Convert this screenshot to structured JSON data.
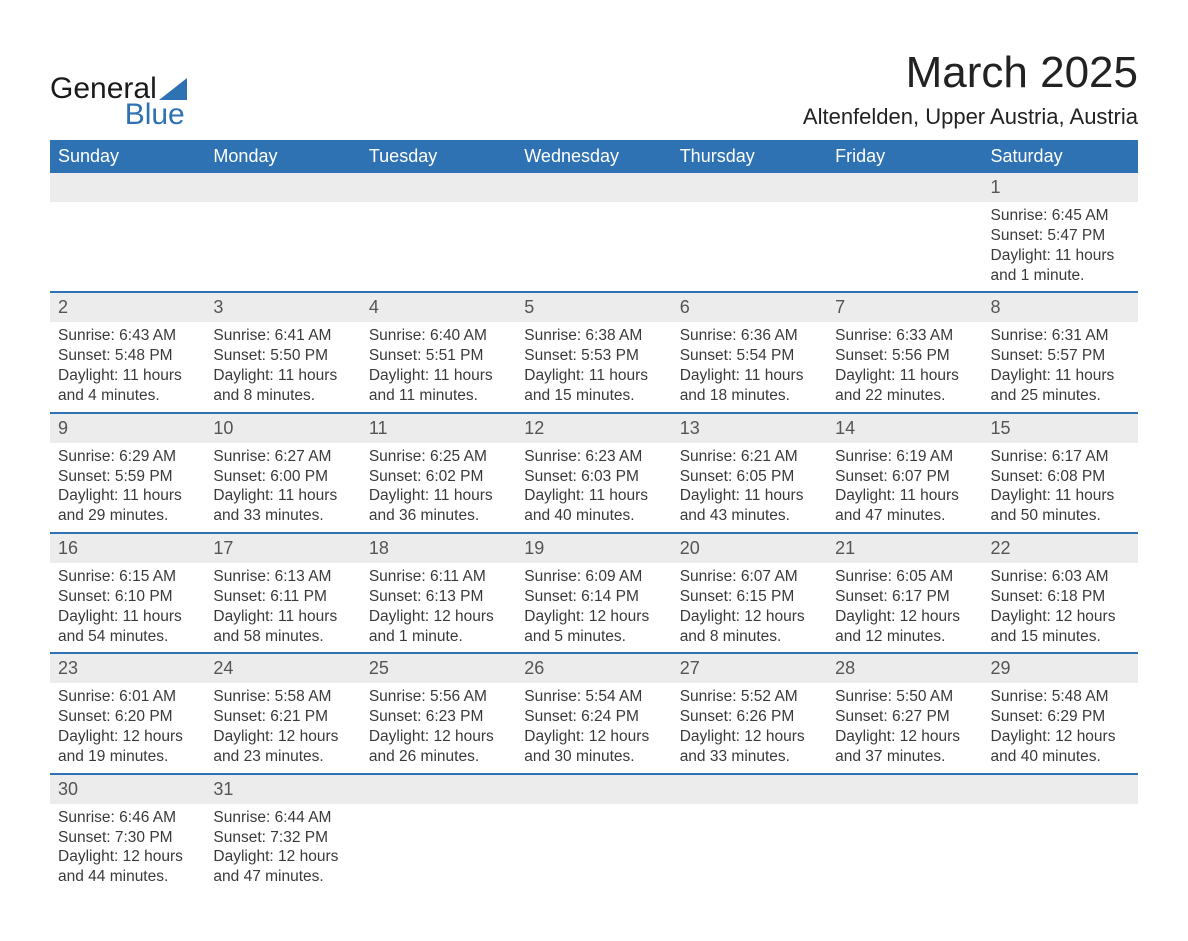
{
  "brand": {
    "line1": "General",
    "line2": "Blue",
    "accent": "#2e72b4"
  },
  "title": "March 2025",
  "location": "Altenfelden, Upper Austria, Austria",
  "day_names": [
    "Sunday",
    "Monday",
    "Tuesday",
    "Wednesday",
    "Thursday",
    "Friday",
    "Saturday"
  ],
  "colors": {
    "header_bg": "#2e72b4",
    "header_text": "#ffffff",
    "daynum_bg": "#ececec",
    "text": "#3a3a3a",
    "rule": "#2e72b4"
  },
  "weeks": [
    [
      null,
      null,
      null,
      null,
      null,
      null,
      {
        "n": "1",
        "sunrise": "Sunrise: 6:45 AM",
        "sunset": "Sunset: 5:47 PM",
        "day1": "Daylight: 11 hours",
        "day2": "and 1 minute."
      }
    ],
    [
      {
        "n": "2",
        "sunrise": "Sunrise: 6:43 AM",
        "sunset": "Sunset: 5:48 PM",
        "day1": "Daylight: 11 hours",
        "day2": "and 4 minutes."
      },
      {
        "n": "3",
        "sunrise": "Sunrise: 6:41 AM",
        "sunset": "Sunset: 5:50 PM",
        "day1": "Daylight: 11 hours",
        "day2": "and 8 minutes."
      },
      {
        "n": "4",
        "sunrise": "Sunrise: 6:40 AM",
        "sunset": "Sunset: 5:51 PM",
        "day1": "Daylight: 11 hours",
        "day2": "and 11 minutes."
      },
      {
        "n": "5",
        "sunrise": "Sunrise: 6:38 AM",
        "sunset": "Sunset: 5:53 PM",
        "day1": "Daylight: 11 hours",
        "day2": "and 15 minutes."
      },
      {
        "n": "6",
        "sunrise": "Sunrise: 6:36 AM",
        "sunset": "Sunset: 5:54 PM",
        "day1": "Daylight: 11 hours",
        "day2": "and 18 minutes."
      },
      {
        "n": "7",
        "sunrise": "Sunrise: 6:33 AM",
        "sunset": "Sunset: 5:56 PM",
        "day1": "Daylight: 11 hours",
        "day2": "and 22 minutes."
      },
      {
        "n": "8",
        "sunrise": "Sunrise: 6:31 AM",
        "sunset": "Sunset: 5:57 PM",
        "day1": "Daylight: 11 hours",
        "day2": "and 25 minutes."
      }
    ],
    [
      {
        "n": "9",
        "sunrise": "Sunrise: 6:29 AM",
        "sunset": "Sunset: 5:59 PM",
        "day1": "Daylight: 11 hours",
        "day2": "and 29 minutes."
      },
      {
        "n": "10",
        "sunrise": "Sunrise: 6:27 AM",
        "sunset": "Sunset: 6:00 PM",
        "day1": "Daylight: 11 hours",
        "day2": "and 33 minutes."
      },
      {
        "n": "11",
        "sunrise": "Sunrise: 6:25 AM",
        "sunset": "Sunset: 6:02 PM",
        "day1": "Daylight: 11 hours",
        "day2": "and 36 minutes."
      },
      {
        "n": "12",
        "sunrise": "Sunrise: 6:23 AM",
        "sunset": "Sunset: 6:03 PM",
        "day1": "Daylight: 11 hours",
        "day2": "and 40 minutes."
      },
      {
        "n": "13",
        "sunrise": "Sunrise: 6:21 AM",
        "sunset": "Sunset: 6:05 PM",
        "day1": "Daylight: 11 hours",
        "day2": "and 43 minutes."
      },
      {
        "n": "14",
        "sunrise": "Sunrise: 6:19 AM",
        "sunset": "Sunset: 6:07 PM",
        "day1": "Daylight: 11 hours",
        "day2": "and 47 minutes."
      },
      {
        "n": "15",
        "sunrise": "Sunrise: 6:17 AM",
        "sunset": "Sunset: 6:08 PM",
        "day1": "Daylight: 11 hours",
        "day2": "and 50 minutes."
      }
    ],
    [
      {
        "n": "16",
        "sunrise": "Sunrise: 6:15 AM",
        "sunset": "Sunset: 6:10 PM",
        "day1": "Daylight: 11 hours",
        "day2": "and 54 minutes."
      },
      {
        "n": "17",
        "sunrise": "Sunrise: 6:13 AM",
        "sunset": "Sunset: 6:11 PM",
        "day1": "Daylight: 11 hours",
        "day2": "and 58 minutes."
      },
      {
        "n": "18",
        "sunrise": "Sunrise: 6:11 AM",
        "sunset": "Sunset: 6:13 PM",
        "day1": "Daylight: 12 hours",
        "day2": "and 1 minute."
      },
      {
        "n": "19",
        "sunrise": "Sunrise: 6:09 AM",
        "sunset": "Sunset: 6:14 PM",
        "day1": "Daylight: 12 hours",
        "day2": "and 5 minutes."
      },
      {
        "n": "20",
        "sunrise": "Sunrise: 6:07 AM",
        "sunset": "Sunset: 6:15 PM",
        "day1": "Daylight: 12 hours",
        "day2": "and 8 minutes."
      },
      {
        "n": "21",
        "sunrise": "Sunrise: 6:05 AM",
        "sunset": "Sunset: 6:17 PM",
        "day1": "Daylight: 12 hours",
        "day2": "and 12 minutes."
      },
      {
        "n": "22",
        "sunrise": "Sunrise: 6:03 AM",
        "sunset": "Sunset: 6:18 PM",
        "day1": "Daylight: 12 hours",
        "day2": "and 15 minutes."
      }
    ],
    [
      {
        "n": "23",
        "sunrise": "Sunrise: 6:01 AM",
        "sunset": "Sunset: 6:20 PM",
        "day1": "Daylight: 12 hours",
        "day2": "and 19 minutes."
      },
      {
        "n": "24",
        "sunrise": "Sunrise: 5:58 AM",
        "sunset": "Sunset: 6:21 PM",
        "day1": "Daylight: 12 hours",
        "day2": "and 23 minutes."
      },
      {
        "n": "25",
        "sunrise": "Sunrise: 5:56 AM",
        "sunset": "Sunset: 6:23 PM",
        "day1": "Daylight: 12 hours",
        "day2": "and 26 minutes."
      },
      {
        "n": "26",
        "sunrise": "Sunrise: 5:54 AM",
        "sunset": "Sunset: 6:24 PM",
        "day1": "Daylight: 12 hours",
        "day2": "and 30 minutes."
      },
      {
        "n": "27",
        "sunrise": "Sunrise: 5:52 AM",
        "sunset": "Sunset: 6:26 PM",
        "day1": "Daylight: 12 hours",
        "day2": "and 33 minutes."
      },
      {
        "n": "28",
        "sunrise": "Sunrise: 5:50 AM",
        "sunset": "Sunset: 6:27 PM",
        "day1": "Daylight: 12 hours",
        "day2": "and 37 minutes."
      },
      {
        "n": "29",
        "sunrise": "Sunrise: 5:48 AM",
        "sunset": "Sunset: 6:29 PM",
        "day1": "Daylight: 12 hours",
        "day2": "and 40 minutes."
      }
    ],
    [
      {
        "n": "30",
        "sunrise": "Sunrise: 6:46 AM",
        "sunset": "Sunset: 7:30 PM",
        "day1": "Daylight: 12 hours",
        "day2": "and 44 minutes."
      },
      {
        "n": "31",
        "sunrise": "Sunrise: 6:44 AM",
        "sunset": "Sunset: 7:32 PM",
        "day1": "Daylight: 12 hours",
        "day2": "and 47 minutes."
      },
      null,
      null,
      null,
      null,
      null
    ]
  ]
}
